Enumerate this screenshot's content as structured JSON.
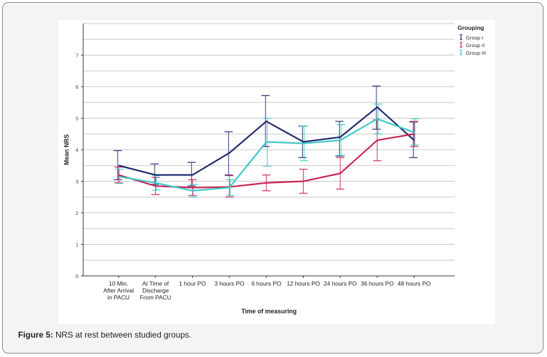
{
  "caption": {
    "label": "Figure 5:",
    "text": "NRS at rest between studied groups."
  },
  "chart_data": {
    "type": "line",
    "title": "",
    "xlabel": "Time of measuring",
    "ylabel": "Mean NRS",
    "ylim": [
      0,
      8
    ],
    "yticks": [
      0,
      1,
      2,
      3,
      4,
      5,
      6,
      7
    ],
    "categories": [
      "10 Min.|After Arrival|in PACU",
      "At Time of|Discharge|From PACU",
      "1 hour PO",
      "3 hours PO",
      "6 hours PO",
      "12 hours PO",
      "24 hours PO",
      "36 hours PO",
      "48 hours PO"
    ],
    "legend": {
      "title": "Grouping",
      "position": "top-right"
    },
    "series": [
      {
        "name": "Group I",
        "color": "#1f2a6e",
        "values": [
          3.5,
          3.2,
          3.2,
          3.9,
          4.9,
          4.25,
          4.4,
          5.35,
          4.3
        ],
        "err_low": [
          3.05,
          2.9,
          2.85,
          3.2,
          4.1,
          3.75,
          3.8,
          4.65,
          3.75
        ],
        "err_high": [
          3.97,
          3.55,
          3.6,
          4.57,
          5.72,
          4.75,
          4.9,
          6.02,
          4.88
        ]
      },
      {
        "name": "Group II",
        "color": "#c8234f",
        "values": [
          3.2,
          2.85,
          2.8,
          2.82,
          2.95,
          3.0,
          3.25,
          4.3,
          4.5
        ],
        "err_low": [
          2.95,
          2.58,
          2.55,
          2.5,
          2.7,
          2.62,
          2.75,
          3.65,
          4.1
        ],
        "err_high": [
          3.45,
          3.12,
          3.05,
          3.18,
          3.2,
          3.38,
          3.75,
          4.95,
          4.9
        ]
      },
      {
        "name": "Group III",
        "color": "#3cc8c8",
        "values": [
          3.15,
          2.95,
          2.7,
          2.8,
          4.25,
          4.2,
          4.3,
          4.98,
          4.55
        ],
        "err_low": [
          2.93,
          2.72,
          2.5,
          2.55,
          3.48,
          3.65,
          3.82,
          4.5,
          4.15
        ],
        "err_high": [
          3.38,
          3.18,
          2.9,
          3.05,
          5.0,
          4.75,
          4.8,
          5.45,
          4.98
        ]
      }
    ]
  }
}
